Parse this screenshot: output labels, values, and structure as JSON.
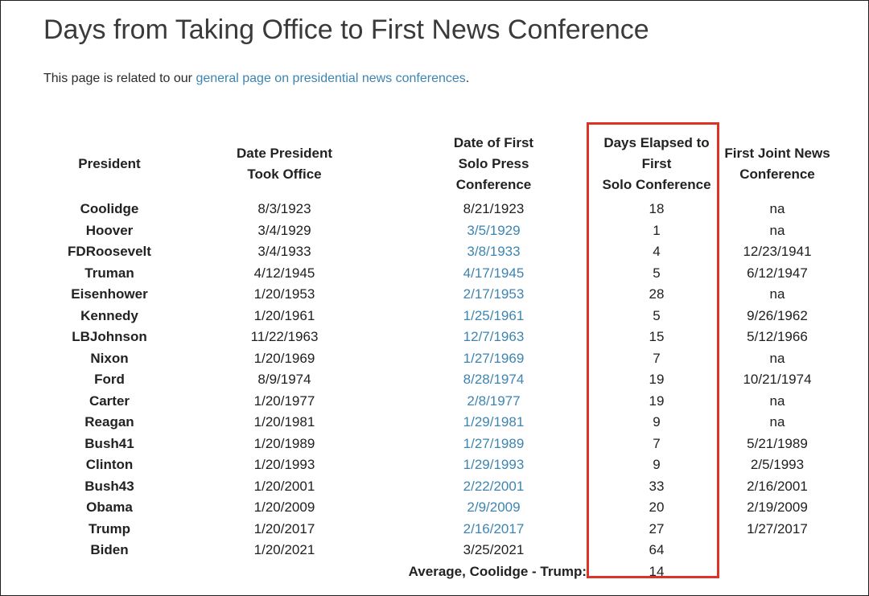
{
  "page": {
    "title": "Days from Taking Office to First News Conference",
    "intro_prefix": "This page is related to our ",
    "intro_link": "general page on presidential news conferences",
    "intro_suffix": "."
  },
  "colors": {
    "link_blue": "#3d85b0",
    "highlight_red": "#de3226",
    "text_dark": "#202020"
  },
  "table": {
    "columns": [
      {
        "label_lines": [
          "President"
        ],
        "highlighted": false
      },
      {
        "label_lines": [
          "Date President",
          "Took Office"
        ],
        "highlighted": false
      },
      {
        "label_lines": [
          "Date of First",
          "Solo Press",
          "Conference"
        ],
        "highlighted": false
      },
      {
        "label_lines": [
          "Days Elapsed to",
          "First",
          "Solo Conference"
        ],
        "highlighted": true
      },
      {
        "label_lines": [
          "First Joint News",
          "Conference"
        ],
        "highlighted": false
      }
    ],
    "rows": [
      {
        "president": "Coolidge",
        "took_office": "8/3/1923",
        "first_solo": "8/21/1923",
        "solo_is_link": false,
        "days_elapsed": "18",
        "first_joint": "na"
      },
      {
        "president": "Hoover",
        "took_office": "3/4/1929",
        "first_solo": "3/5/1929",
        "solo_is_link": true,
        "days_elapsed": "1",
        "first_joint": "na"
      },
      {
        "president": "FDRoosevelt",
        "took_office": "3/4/1933",
        "first_solo": "3/8/1933",
        "solo_is_link": true,
        "days_elapsed": "4",
        "first_joint": "12/23/1941"
      },
      {
        "president": "Truman",
        "took_office": "4/12/1945",
        "first_solo": "4/17/1945",
        "solo_is_link": true,
        "days_elapsed": "5",
        "first_joint": "6/12/1947"
      },
      {
        "president": "Eisenhower",
        "took_office": "1/20/1953",
        "first_solo": "2/17/1953",
        "solo_is_link": true,
        "days_elapsed": "28",
        "first_joint": "na"
      },
      {
        "president": "Kennedy",
        "took_office": "1/20/1961",
        "first_solo": "1/25/1961",
        "solo_is_link": true,
        "days_elapsed": "5",
        "first_joint": "9/26/1962"
      },
      {
        "president": "LBJohnson",
        "took_office": "11/22/1963",
        "first_solo": "12/7/1963",
        "solo_is_link": true,
        "days_elapsed": "15",
        "first_joint": "5/12/1966"
      },
      {
        "president": "Nixon",
        "took_office": "1/20/1969",
        "first_solo": "1/27/1969",
        "solo_is_link": true,
        "days_elapsed": "7",
        "first_joint": "na"
      },
      {
        "president": "Ford",
        "took_office": "8/9/1974",
        "first_solo": "8/28/1974",
        "solo_is_link": true,
        "days_elapsed": "19",
        "first_joint": "10/21/1974"
      },
      {
        "president": "Carter",
        "took_office": "1/20/1977",
        "first_solo": "2/8/1977",
        "solo_is_link": true,
        "days_elapsed": "19",
        "first_joint": "na"
      },
      {
        "president": "Reagan",
        "took_office": "1/20/1981",
        "first_solo": "1/29/1981",
        "solo_is_link": true,
        "days_elapsed": "9",
        "first_joint": "na"
      },
      {
        "president": "Bush41",
        "took_office": "1/20/1989",
        "first_solo": "1/27/1989",
        "solo_is_link": true,
        "days_elapsed": "7",
        "first_joint": "5/21/1989"
      },
      {
        "president": "Clinton",
        "took_office": "1/20/1993",
        "first_solo": "1/29/1993",
        "solo_is_link": true,
        "days_elapsed": "9",
        "first_joint": "2/5/1993"
      },
      {
        "president": "Bush43",
        "took_office": "1/20/2001",
        "first_solo": "2/22/2001",
        "solo_is_link": true,
        "days_elapsed": "33",
        "first_joint": "2/16/2001"
      },
      {
        "president": "Obama",
        "took_office": "1/20/2009",
        "first_solo": "2/9/2009",
        "solo_is_link": true,
        "days_elapsed": "20",
        "first_joint": "2/19/2009"
      },
      {
        "president": "Trump",
        "took_office": "1/20/2017",
        "first_solo": "2/16/2017",
        "solo_is_link": true,
        "days_elapsed": "27",
        "first_joint": "1/27/2017"
      },
      {
        "president": "Biden",
        "took_office": "1/20/2021",
        "first_solo": "3/25/2021",
        "solo_is_link": false,
        "days_elapsed": "64",
        "first_joint": ""
      }
    ],
    "footer": {
      "label": "Average, Coolidge - Trump:",
      "value": "14"
    }
  }
}
